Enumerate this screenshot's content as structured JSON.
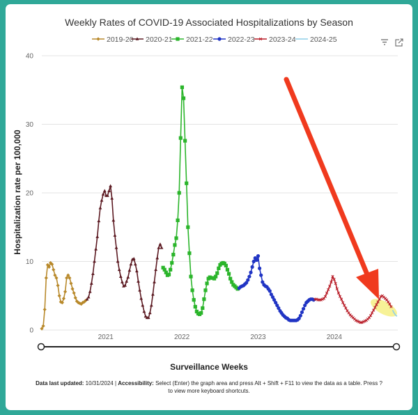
{
  "chart_data": {
    "type": "line",
    "title": "Weekly Rates of COVID-19 Associated Hospitalizations by Season",
    "xlabel": "Surveillance Weeks",
    "ylabel": "Hospitalization rate per 100,000",
    "ylim": [
      0,
      40
    ],
    "y_ticks": [
      "0",
      "10",
      "20",
      "30",
      "40"
    ],
    "x_ticks": [
      {
        "label": "2021",
        "date": "2021-01-01"
      },
      {
        "label": "2022",
        "date": "2022-01-01"
      },
      {
        "label": "2023",
        "date": "2023-01-01"
      },
      {
        "label": "2024",
        "date": "2024-01-01"
      }
    ],
    "xlim": [
      "2020-03-01",
      "2024-10-31"
    ],
    "grid": true,
    "legend_position": "top",
    "series": [
      {
        "name": "2019-20",
        "color": "#b8892b",
        "marker": "diamond",
        "x": [
          "2020-03-01",
          "2020-03-08",
          "2020-03-15",
          "2020-03-22",
          "2020-03-29",
          "2020-04-05",
          "2020-04-12",
          "2020-04-19",
          "2020-04-26",
          "2020-05-03",
          "2020-05-10",
          "2020-05-17",
          "2020-05-24",
          "2020-05-31",
          "2020-06-07",
          "2020-06-14",
          "2020-06-21",
          "2020-06-28",
          "2020-07-05",
          "2020-07-12",
          "2020-07-19",
          "2020-07-26",
          "2020-08-02",
          "2020-08-09",
          "2020-08-16",
          "2020-08-23",
          "2020-08-30",
          "2020-09-06",
          "2020-09-13",
          "2020-09-20",
          "2020-09-27"
        ],
        "y": [
          0.2,
          0.6,
          3.0,
          7.6,
          9.5,
          9.2,
          9.8,
          9.6,
          8.8,
          8.0,
          7.6,
          6.5,
          5.0,
          4.1,
          4.0,
          4.6,
          5.6,
          7.6,
          8.0,
          7.6,
          6.8,
          6.0,
          5.4,
          4.7,
          4.2,
          4.0,
          3.9,
          3.8,
          4.0,
          4.1,
          4.3
        ]
      },
      {
        "name": "2020-21",
        "color": "#5c1a22",
        "marker": "triangle",
        "x": [
          "2020-10-04",
          "2020-10-11",
          "2020-10-18",
          "2020-10-25",
          "2020-11-01",
          "2020-11-08",
          "2020-11-15",
          "2020-11-22",
          "2020-11-29",
          "2020-12-06",
          "2020-12-13",
          "2020-12-20",
          "2020-12-27",
          "2021-01-03",
          "2021-01-10",
          "2021-01-17",
          "2021-01-24",
          "2021-01-31",
          "2021-02-07",
          "2021-02-14",
          "2021-02-21",
          "2021-02-28",
          "2021-03-07",
          "2021-03-14",
          "2021-03-21",
          "2021-03-28",
          "2021-04-04",
          "2021-04-11",
          "2021-04-18",
          "2021-04-25",
          "2021-05-02",
          "2021-05-09",
          "2021-05-16",
          "2021-05-23",
          "2021-05-30",
          "2021-06-06",
          "2021-06-13",
          "2021-06-20",
          "2021-06-27",
          "2021-07-04",
          "2021-07-11",
          "2021-07-18",
          "2021-07-25",
          "2021-08-01",
          "2021-08-08",
          "2021-08-15",
          "2021-08-22",
          "2021-08-29",
          "2021-09-05",
          "2021-09-12",
          "2021-09-19",
          "2021-09-26"
        ],
        "y": [
          4.5,
          4.8,
          5.6,
          6.8,
          8.2,
          10.0,
          11.8,
          13.6,
          15.9,
          17.8,
          18.9,
          19.8,
          20.3,
          19.6,
          19.6,
          20.3,
          21.0,
          19.2,
          16.0,
          13.8,
          12.0,
          10.0,
          8.8,
          7.8,
          7.0,
          6.4,
          6.5,
          7.1,
          7.7,
          8.7,
          9.6,
          10.3,
          10.4,
          9.6,
          8.6,
          7.1,
          5.8,
          4.6,
          3.6,
          2.7,
          2.0,
          1.8,
          1.8,
          2.5,
          3.6,
          5.2,
          7.0,
          8.8,
          10.5,
          12.0,
          12.5,
          12.0
        ]
      },
      {
        "name": "2021-22",
        "color": "#2bb52b",
        "marker": "square",
        "x": [
          "2021-10-03",
          "2021-10-10",
          "2021-10-17",
          "2021-10-24",
          "2021-10-31",
          "2021-11-07",
          "2021-11-14",
          "2021-11-21",
          "2021-11-28",
          "2021-12-05",
          "2021-12-12",
          "2021-12-19",
          "2021-12-26",
          "2022-01-02",
          "2022-01-09",
          "2022-01-16",
          "2022-01-23",
          "2022-01-30",
          "2022-02-06",
          "2022-02-13",
          "2022-02-20",
          "2022-02-27",
          "2022-03-06",
          "2022-03-13",
          "2022-03-20",
          "2022-03-27",
          "2022-04-03",
          "2022-04-10",
          "2022-04-17",
          "2022-04-24",
          "2022-05-01",
          "2022-05-08",
          "2022-05-15",
          "2022-05-22",
          "2022-05-29",
          "2022-06-05",
          "2022-06-12",
          "2022-06-19",
          "2022-06-26",
          "2022-07-03",
          "2022-07-10",
          "2022-07-17",
          "2022-07-24",
          "2022-07-31",
          "2022-08-07",
          "2022-08-14",
          "2022-08-21",
          "2022-08-28",
          "2022-09-04",
          "2022-09-11",
          "2022-09-18",
          "2022-09-25"
        ],
        "y": [
          9.1,
          8.8,
          8.4,
          8.0,
          8.1,
          8.8,
          9.8,
          11.0,
          12.4,
          13.4,
          16.0,
          20.0,
          28.0,
          35.4,
          33.8,
          27.6,
          21.4,
          15.0,
          11.2,
          7.8,
          5.8,
          4.4,
          3.4,
          2.7,
          2.4,
          2.3,
          2.5,
          3.2,
          4.5,
          5.8,
          6.8,
          7.5,
          7.7,
          7.6,
          7.6,
          7.5,
          7.8,
          8.3,
          9.0,
          9.5,
          9.7,
          9.8,
          9.7,
          9.4,
          8.8,
          8.2,
          7.5,
          7.0,
          6.6,
          6.4,
          6.2,
          6.0
        ]
      },
      {
        "name": "2022-23",
        "color": "#2034c4",
        "marker": "circle",
        "x": [
          "2022-10-02",
          "2022-10-09",
          "2022-10-16",
          "2022-10-23",
          "2022-10-30",
          "2022-11-06",
          "2022-11-13",
          "2022-11-20",
          "2022-11-27",
          "2022-12-04",
          "2022-12-11",
          "2022-12-18",
          "2022-12-25",
          "2023-01-01",
          "2023-01-08",
          "2023-01-15",
          "2023-01-22",
          "2023-01-29",
          "2023-02-05",
          "2023-02-12",
          "2023-02-19",
          "2023-02-26",
          "2023-03-05",
          "2023-03-12",
          "2023-03-19",
          "2023-03-26",
          "2023-04-02",
          "2023-04-09",
          "2023-04-16",
          "2023-04-23",
          "2023-04-30",
          "2023-05-07",
          "2023-05-14",
          "2023-05-21",
          "2023-05-28",
          "2023-06-04",
          "2023-06-11",
          "2023-06-18",
          "2023-06-25",
          "2023-07-02",
          "2023-07-09",
          "2023-07-16",
          "2023-07-23",
          "2023-07-30",
          "2023-08-06",
          "2023-08-13",
          "2023-08-20",
          "2023-08-27",
          "2023-09-03",
          "2023-09-10",
          "2023-09-17",
          "2023-09-24"
        ],
        "y": [
          6.1,
          6.3,
          6.4,
          6.5,
          6.7,
          6.9,
          7.3,
          7.8,
          8.4,
          9.2,
          10.0,
          10.5,
          10.2,
          10.8,
          9.0,
          8.0,
          7.0,
          6.6,
          6.4,
          6.3,
          6.0,
          5.7,
          5.2,
          4.8,
          4.4,
          4.0,
          3.6,
          3.2,
          2.8,
          2.5,
          2.2,
          2.0,
          1.8,
          1.7,
          1.5,
          1.4,
          1.4,
          1.4,
          1.4,
          1.4,
          1.5,
          1.7,
          2.1,
          2.6,
          3.1,
          3.6,
          4.0,
          4.2,
          4.4,
          4.5,
          4.5,
          4.4
        ]
      },
      {
        "name": "2023-24",
        "color": "#b81b26",
        "marker": "x",
        "x": [
          "2023-10-01",
          "2023-10-08",
          "2023-10-15",
          "2023-10-22",
          "2023-10-29",
          "2023-11-05",
          "2023-11-12",
          "2023-11-19",
          "2023-11-26",
          "2023-12-03",
          "2023-12-10",
          "2023-12-17",
          "2023-12-24",
          "2023-12-31",
          "2024-01-07",
          "2024-01-14",
          "2024-01-21",
          "2024-01-28",
          "2024-02-04",
          "2024-02-11",
          "2024-02-18",
          "2024-02-25",
          "2024-03-03",
          "2024-03-10",
          "2024-03-17",
          "2024-03-24",
          "2024-03-31",
          "2024-04-07",
          "2024-04-14",
          "2024-04-21",
          "2024-04-28",
          "2024-05-05",
          "2024-05-12",
          "2024-05-19",
          "2024-05-26",
          "2024-06-02",
          "2024-06-09",
          "2024-06-16",
          "2024-06-23",
          "2024-06-30",
          "2024-07-07",
          "2024-07-14",
          "2024-07-21",
          "2024-07-28",
          "2024-08-04",
          "2024-08-11",
          "2024-08-18",
          "2024-08-25",
          "2024-09-01",
          "2024-09-08",
          "2024-09-15",
          "2024-09-22",
          "2024-09-29"
        ],
        "y": [
          4.5,
          4.5,
          4.4,
          4.4,
          4.4,
          4.5,
          4.6,
          4.9,
          5.4,
          5.9,
          6.4,
          7.0,
          7.8,
          7.4,
          6.8,
          6.0,
          5.4,
          4.9,
          4.5,
          4.0,
          3.6,
          3.2,
          2.8,
          2.5,
          2.2,
          2.0,
          1.8,
          1.6,
          1.4,
          1.3,
          1.2,
          1.1,
          1.1,
          1.2,
          1.3,
          1.4,
          1.6,
          1.8,
          2.1,
          2.5,
          2.9,
          3.3,
          3.7,
          4.1,
          4.5,
          4.9,
          5.0,
          4.8,
          4.6,
          4.4,
          4.1,
          3.8,
          3.4
        ]
      },
      {
        "name": "2024-25",
        "color": "#8ecfe8",
        "marker": "none",
        "x": [
          "2024-10-06",
          "2024-10-13",
          "2024-10-20",
          "2024-10-27"
        ],
        "y": [
          2.9,
          2.5,
          2.2,
          2.0
        ]
      }
    ]
  },
  "footer": {
    "updated_label": "Data last updated:",
    "updated_value": "10/31/2024",
    "separator": "|",
    "accessibility_label": "Accessibility:",
    "accessibility_text": "Select (Enter) the graph area and press Alt + Shift + F11 to view the data as a table. Press ? to view more keyboard shortcuts."
  },
  "toolbar": {
    "filter_icon": "filter-icon",
    "expand_icon": "expand-icon"
  },
  "annotation": {
    "arrow_color": "#f03a1e",
    "highlight_color": "#f4ee74"
  }
}
